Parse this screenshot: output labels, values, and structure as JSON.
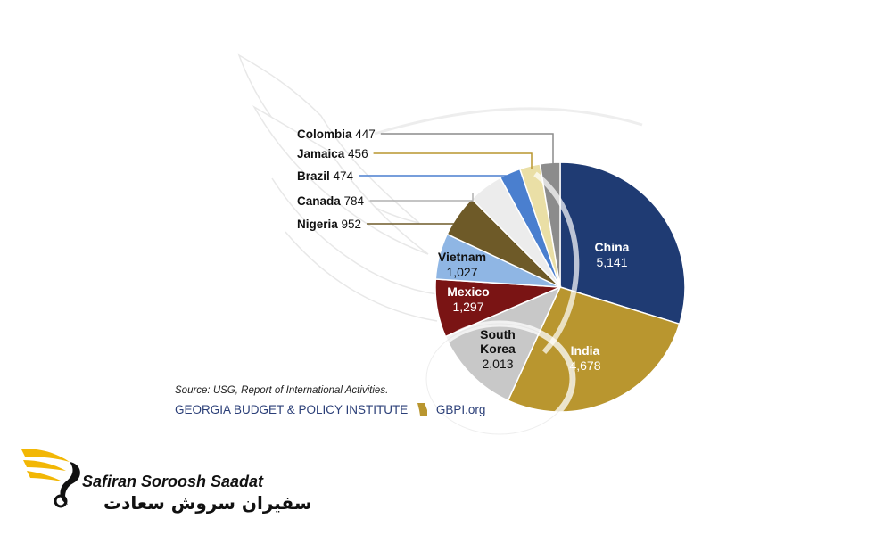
{
  "chart_data": {
    "type": "pie",
    "slices": [
      {
        "name": "China",
        "value": 5141,
        "color": "#1f3b73",
        "text_color": "#ffffff"
      },
      {
        "name": "India",
        "value": 4678,
        "color": "#b9962f",
        "text_color": "#ffffff"
      },
      {
        "name": "South Korea",
        "value": 2013,
        "color": "#c8c8c8",
        "text_color": "#111111"
      },
      {
        "name": "Mexico",
        "value": 1297,
        "color": "#7a1414",
        "text_color": "#ffffff"
      },
      {
        "name": "Vietnam",
        "value": 1027,
        "color": "#8fb6e4",
        "text_color": "#111111"
      },
      {
        "name": "Nigeria",
        "value": 952,
        "color": "#6e5a28",
        "text_color": "#111111"
      },
      {
        "name": "Canada",
        "value": 784,
        "color": "#ececec",
        "text_color": "#111111"
      },
      {
        "name": "Brazil",
        "value": 474,
        "color": "#4a7fcf",
        "text_color": "#111111"
      },
      {
        "name": "Jamaica",
        "value": 456,
        "color": "#eadfa6",
        "text_color": "#111111"
      },
      {
        "name": "Colombia",
        "value": 447,
        "color": "#8c8c8c",
        "text_color": "#111111"
      }
    ],
    "inside_labels": [
      {
        "name": "China",
        "value_text": "5,141"
      },
      {
        "name": "India",
        "value_text": "4,678"
      },
      {
        "name_lines": [
          "South",
          "Korea"
        ],
        "value_text": "2,013"
      },
      {
        "name": "Mexico",
        "value_text": "1,297"
      },
      {
        "name": "Vietnam",
        "value_text": "1,027"
      }
    ],
    "callout_labels": [
      {
        "name": "Colombia",
        "value_text": "447",
        "line_color": "#8c8c8c"
      },
      {
        "name": "Jamaica",
        "value_text": "456",
        "line_color": "#b9962f"
      },
      {
        "name": "Brazil",
        "value_text": "474",
        "line_color": "#4a7fcf"
      },
      {
        "name": "Canada",
        "value_text": "784",
        "line_color": "#b0b0b0"
      },
      {
        "name": "Nigeria",
        "value_text": "952",
        "line_color": "#6e5a28"
      }
    ]
  },
  "source_text": "Source: USG, Report of International Activities.",
  "organization": {
    "name": "GEORGIA BUDGET & POLICY INSTITUTE",
    "site": "GBPI.org",
    "accent_color": "#b9962f"
  },
  "watermark_brand": {
    "name_en": "Safiran Soroosh Saadat",
    "name_fa": "سفیران سروش سعادت",
    "accent_color": "#f2b705"
  }
}
